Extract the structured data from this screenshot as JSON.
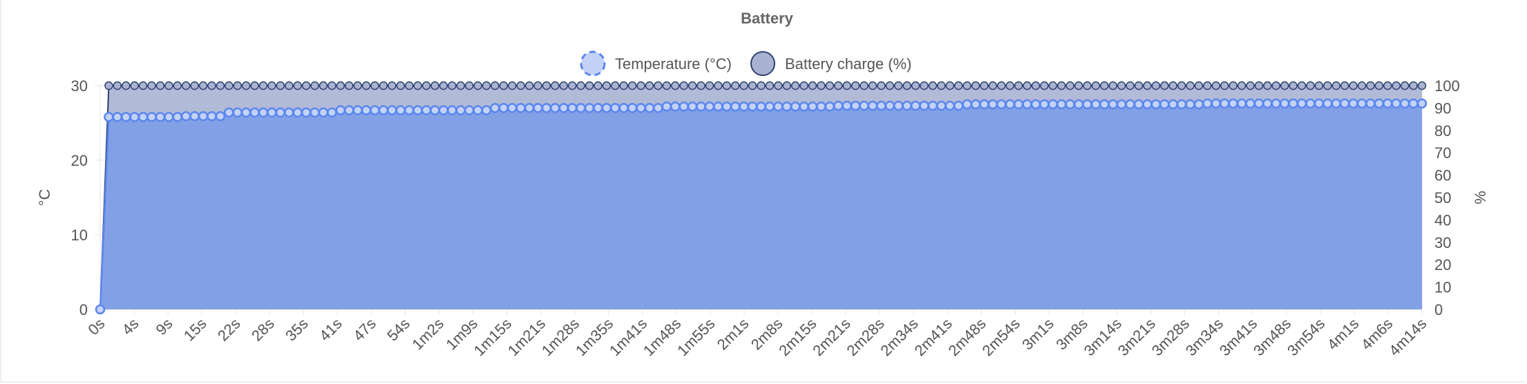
{
  "chart_data": {
    "type": "line",
    "title": "Battery",
    "legend": {
      "placement": "top-center"
    },
    "grid": true,
    "colors": {
      "temperature": "#5b86ee",
      "battery": "#4a5f99",
      "battery_fill": "#a9b3d1",
      "temperature_fill": "#7f9ee6",
      "grid": "#e3e3e3"
    },
    "series": [
      {
        "name": "Temperature (°C)",
        "axis": "left",
        "start": 0,
        "segments": [
          [
            1,
            9,
            25.8
          ],
          [
            10,
            14,
            25.9
          ],
          [
            15,
            27,
            26.4
          ],
          [
            28,
            45,
            26.7
          ],
          [
            46,
            65,
            27.0
          ],
          [
            66,
            85,
            27.2
          ],
          [
            86,
            100,
            27.3
          ],
          [
            101,
            128,
            27.5
          ],
          [
            129,
            155,
            27.6
          ]
        ]
      },
      {
        "name": "Battery charge (%)",
        "axis": "right",
        "start": 0,
        "rest": 100
      }
    ],
    "x": {
      "count": 155,
      "tick_labels": [
        "0s",
        "4s",
        "9s",
        "15s",
        "22s",
        "28s",
        "35s",
        "41s",
        "47s",
        "54s",
        "1m2s",
        "1m9s",
        "1m15s",
        "1m21s",
        "1m28s",
        "1m35s",
        "1m41s",
        "1m48s",
        "1m55s",
        "2m1s",
        "2m8s",
        "2m15s",
        "2m21s",
        "2m28s",
        "2m34s",
        "2m41s",
        "2m48s",
        "2m54s",
        "3m1s",
        "3m8s",
        "3m14s",
        "3m21s",
        "3m28s",
        "3m34s",
        "3m41s",
        "3m48s",
        "3m54s",
        "4m1s",
        "4m6s",
        "4m14s"
      ]
    },
    "y_left": {
      "label": "°C",
      "ylim": [
        0,
        30
      ],
      "ticks": [
        "0",
        "10",
        "20",
        "30"
      ]
    },
    "y_right": {
      "label": "%",
      "ylim": [
        0,
        100
      ],
      "ticks": [
        "0",
        "10",
        "20",
        "30",
        "40",
        "50",
        "60",
        "70",
        "80",
        "90",
        "100"
      ]
    }
  }
}
